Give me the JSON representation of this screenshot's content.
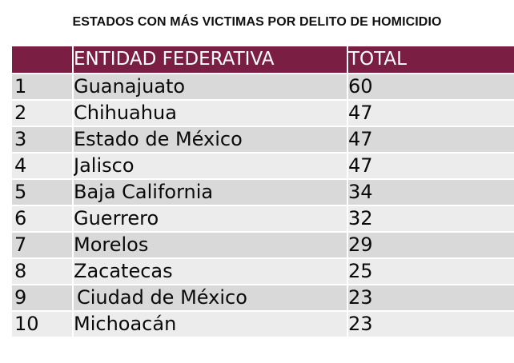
{
  "title": "ESTADOS CON MÁS VICTIMAS POR DELITO DE HOMICIDIO",
  "colors": {
    "header_bg": "#7a1f43",
    "header_text": "#ffffff",
    "row_odd": "#d9d9d9",
    "row_even": "#ececec"
  },
  "chart_data": {
    "type": "table",
    "title": "ESTADOS CON MÁS VICTIMAS POR DELITO DE HOMICIDIO",
    "columns": [
      "",
      "ENTIDAD FEDERATIVA",
      "TOTAL"
    ],
    "rows": [
      {
        "rank": "1",
        "state": "Guanajuato",
        "total": "60"
      },
      {
        "rank": "2",
        "state": "Chihuahua",
        "total": "47"
      },
      {
        "rank": "3",
        "state": "Estado de México",
        "total": "47"
      },
      {
        "rank": "4",
        "state": "Jalisco",
        "total": "47"
      },
      {
        "rank": "5",
        "state": "Baja California",
        "total": "34"
      },
      {
        "rank": "6",
        "state": "Guerrero",
        "total": "32"
      },
      {
        "rank": "7",
        "state": "Morelos",
        "total": "29"
      },
      {
        "rank": "8",
        "state": "Zacatecas",
        "total": "25"
      },
      {
        "rank": "9",
        "state": "Ciudad de México",
        "total": "23"
      },
      {
        "rank": "10",
        "state": "Michoacán",
        "total": "23"
      }
    ]
  }
}
